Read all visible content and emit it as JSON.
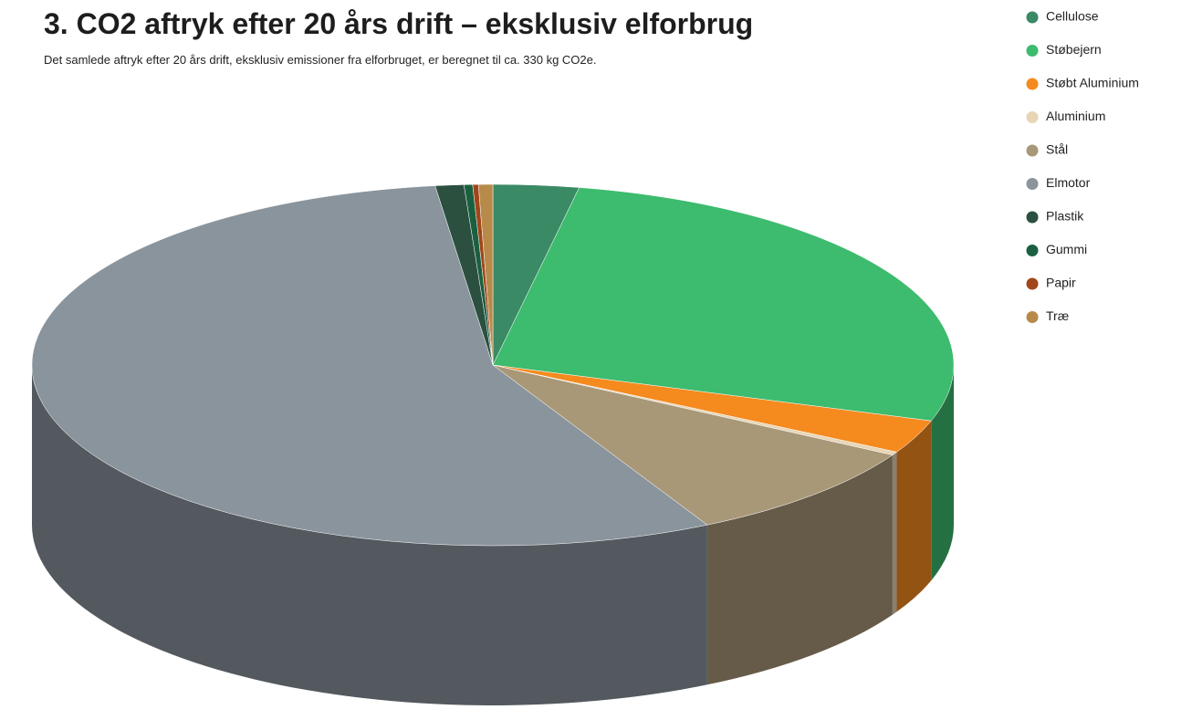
{
  "chart_data": {
    "type": "pie3d",
    "title": "3. CO2 aftryk efter 20 års drift – eksklusiv elforbrug",
    "subtitle": "Det samlede aftryk efter 20 års drift, eksklusiv emissioner fra elforbruget, er beregnet til ca. 330 kg CO2e.",
    "categories": [
      "Cellulose",
      "Støbejern",
      "Støbt Aluminium",
      "Aluminium",
      "Stål",
      "Elmotor",
      "Plastik",
      "Gummi",
      "Papir",
      "Træ"
    ],
    "values": [
      3,
      27,
      3,
      0.3,
      9,
      55.7,
      1,
      0.3,
      0.2,
      0.5
    ],
    "colors": [
      "#3a8a65",
      "#3dbb6e",
      "#f58a1f",
      "#e8d5b5",
      "#a89878",
      "#8a949c",
      "#2b5040",
      "#1a6040",
      "#a0461a",
      "#b88a4a"
    ],
    "legend": "right"
  }
}
